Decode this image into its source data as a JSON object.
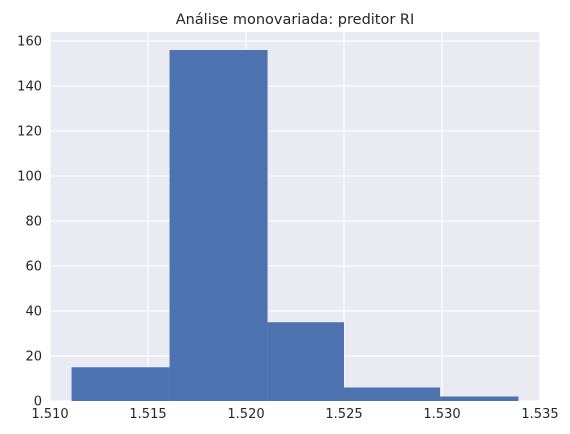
{
  "chart_data": {
    "type": "bar",
    "title": "Análise monovariada: preditor RI",
    "xlabel": "",
    "ylabel": "",
    "xlim": [
      1.51,
      1.535
    ],
    "ylim": [
      0,
      164
    ],
    "grid": true,
    "x_ticks": [
      1.51,
      1.515,
      1.52,
      1.525,
      1.53,
      1.535
    ],
    "x_tick_labels": [
      "1.510",
      "1.515",
      "1.520",
      "1.525",
      "1.530",
      "1.535"
    ],
    "y_ticks": [
      0,
      20,
      40,
      60,
      80,
      100,
      120,
      140,
      160
    ],
    "y_tick_labels": [
      "0",
      "20",
      "40",
      "60",
      "80",
      "100",
      "120",
      "140",
      "160"
    ],
    "bins": [
      {
        "start": 1.5111,
        "end": 1.5161,
        "count": 15
      },
      {
        "start": 1.5161,
        "end": 1.5211,
        "count": 156
      },
      {
        "start": 1.5211,
        "end": 1.525,
        "count": 35
      },
      {
        "start": 1.525,
        "end": 1.5299,
        "count": 6
      },
      {
        "start": 1.5299,
        "end": 1.5339,
        "count": 2
      }
    ],
    "colors": {
      "bar": "#4c72b0",
      "background": "#eaeaf2",
      "grid": "#ffffff"
    }
  }
}
